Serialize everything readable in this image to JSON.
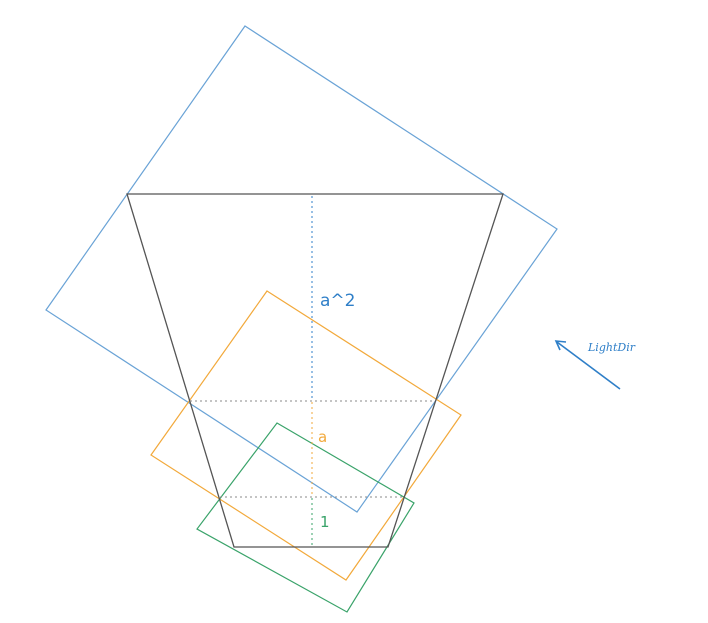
{
  "labels": {
    "a_squared": "a^2",
    "a": "a",
    "one": "1",
    "light_dir": "LightDir"
  },
  "colors": {
    "frustum": "#555555",
    "blue": "#2f7fc8",
    "blue_box": "#6aa3d6",
    "orange": "#f2a93b",
    "green": "#3aa36a",
    "divider": "#888888"
  }
}
